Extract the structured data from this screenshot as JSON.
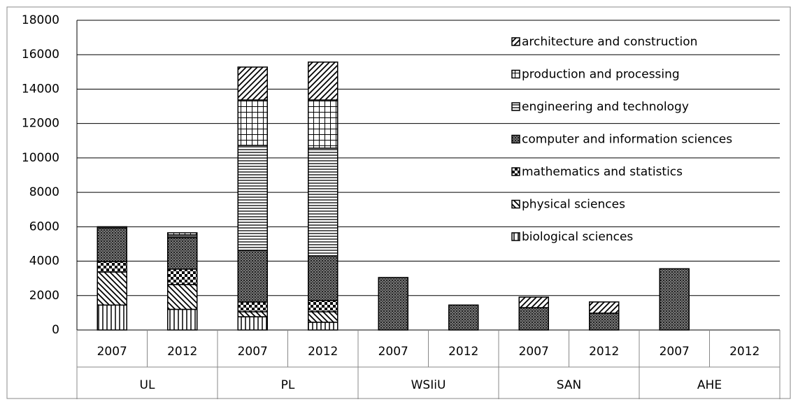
{
  "chart_data": {
    "type": "stacked-bar",
    "categories": [
      "2007",
      "2012",
      "2007",
      "2012",
      "2007",
      "2012",
      "2007",
      "2012",
      "2007",
      "2012"
    ],
    "groups": [
      "UL",
      "PL",
      "WSIiU",
      "SAN",
      "AHE"
    ],
    "ylim": [
      0,
      18000
    ],
    "yticks": [
      0,
      2000,
      4000,
      6000,
      8000,
      10000,
      12000,
      14000,
      16000,
      18000
    ],
    "grid": true,
    "legend": "top-right",
    "series": [
      {
        "name": "biological sciences",
        "color": "#000000",
        "pattern": "vertical",
        "values": [
          1450,
          1200,
          770,
          450,
          0,
          0,
          0,
          0,
          0,
          0
        ]
      },
      {
        "name": "physical sciences",
        "color": "#000000",
        "pattern": "diagonal-down",
        "values": [
          1920,
          1440,
          290,
          610,
          0,
          0,
          0,
          0,
          0,
          0
        ]
      },
      {
        "name": "mathematics and statistics",
        "color": "#000000",
        "pattern": "checker",
        "values": [
          610,
          900,
          570,
          650,
          0,
          0,
          0,
          0,
          0,
          0
        ]
      },
      {
        "name": "computer and information sciences",
        "color": "#000000",
        "pattern": "dots",
        "values": [
          1950,
          1830,
          3000,
          2600,
          3050,
          1450,
          1300,
          980,
          3560,
          0
        ]
      },
      {
        "name": "engineering and technology",
        "color": "#000000",
        "pattern": "horizontal",
        "values": [
          70,
          160,
          6100,
          6260,
          0,
          0,
          0,
          0,
          0,
          0
        ]
      },
      {
        "name": "production and processing",
        "color": "#000000",
        "pattern": "grid",
        "values": [
          0,
          120,
          2640,
          2800,
          0,
          0,
          0,
          0,
          0,
          0
        ]
      },
      {
        "name": "architecture and construction",
        "color": "#000000",
        "pattern": "diagonal-up",
        "values": [
          0,
          0,
          1910,
          2200,
          0,
          0,
          610,
          650,
          0,
          0
        ]
      }
    ]
  }
}
